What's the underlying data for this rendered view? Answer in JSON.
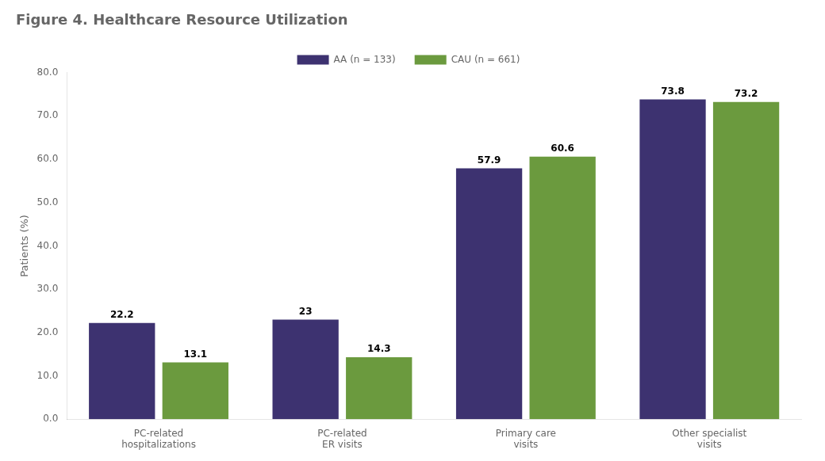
{
  "chart_data": {
    "type": "bar",
    "title": "Figure 4. Healthcare Resource Utilization",
    "categories": [
      "PC-related\nhospitalizations",
      "PC-related\nER visits",
      "Primary care\nvisits",
      "Other specialist\nvisits"
    ],
    "series": [
      {
        "name": "AA (n = 133)",
        "color": "#3d3270",
        "values": [
          22.2,
          23.0,
          57.9,
          73.8
        ]
      },
      {
        "name": "CAU (n = 661)",
        "color": "#6b9a3e",
        "values": [
          13.1,
          14.3,
          60.6,
          73.2
        ]
      }
    ],
    "ylabel": "Patients (%)",
    "ylim": [
      0,
      80
    ],
    "yticks": [
      {
        "value": 0,
        "label": "0.0"
      },
      {
        "value": 10,
        "label": "10.0"
      },
      {
        "value": 20,
        "label": "20.0"
      },
      {
        "value": 30,
        "label": "30.0"
      },
      {
        "value": 40,
        "label": "40.0"
      },
      {
        "value": 50,
        "label": "50.0"
      },
      {
        "value": 60,
        "label": "60.0"
      },
      {
        "value": 70,
        "label": "70.0"
      },
      {
        "value": 80,
        "label": "80.0"
      }
    ],
    "grid": false,
    "legend": "top",
    "data_labels": true
  }
}
